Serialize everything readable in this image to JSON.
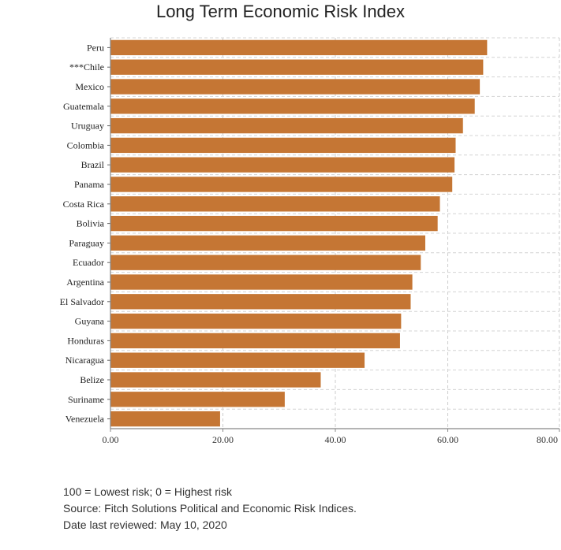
{
  "chart_data": {
    "type": "bar",
    "orientation": "horizontal",
    "title": "Long Term Economic Risk Index",
    "categories": [
      "Peru",
      "***Chile",
      "Mexico",
      "Guatemala",
      "Uruguay",
      "Colombia",
      "Brazil",
      "Panama",
      "Costa Rica",
      "Bolivia",
      "Paraguay",
      "Ecuador",
      "Argentina",
      "El Salvador",
      "Guyana",
      "Honduras",
      "Nicaragua",
      "Belize",
      "Suriname",
      "Venezuela"
    ],
    "values": [
      67.0,
      66.3,
      65.7,
      64.8,
      62.7,
      61.4,
      61.2,
      60.8,
      58.6,
      58.2,
      56.0,
      55.2,
      53.7,
      53.4,
      51.7,
      51.5,
      45.2,
      37.4,
      31.0,
      19.5
    ],
    "xlim": [
      0,
      80
    ],
    "xticks": [
      "0.00",
      "20.00",
      "40.00",
      "60.00",
      "80.00"
    ],
    "grid": true,
    "bar_color": "#c57634"
  },
  "notes": [
    "100 = Lowest risk; 0 = Highest risk",
    "Source: Fitch Solutions Political and Economic Risk Indices.",
    "Date last reviewed: May 10, 2020"
  ]
}
